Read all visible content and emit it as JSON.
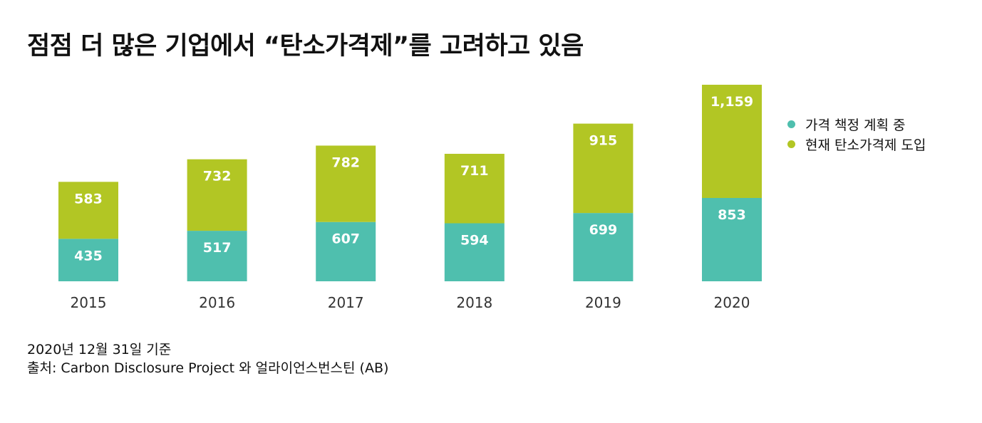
{
  "title": "점점 더 많은 기업에서 “탄소가격제”를 고려하고 있음",
  "legend": {
    "items": [
      {
        "label": "가격 책정 계획 중",
        "color": "#4fbfae"
      },
      {
        "label": "현재 탄소가격제 도입",
        "color": "#b2c624"
      }
    ]
  },
  "footnote": {
    "line1": "2020년 12월 31일 기준",
    "line2": "출처: Carbon Disclosure Project 와 얼라이언스번스틴 (AB)"
  },
  "chart_data": {
    "type": "bar",
    "stacked": true,
    "categories": [
      "2015",
      "2016",
      "2017",
      "2018",
      "2019",
      "2020"
    ],
    "series": [
      {
        "name": "가격 책정 계획 중",
        "color": "#4fbfae",
        "values": [
          435,
          517,
          607,
          594,
          699,
          853
        ],
        "value_labels": [
          "435",
          "517",
          "607",
          "594",
          "699",
          "853"
        ]
      },
      {
        "name": "현재 탄소가격제 도입",
        "color": "#b2c624",
        "values": [
          583,
          732,
          782,
          711,
          915,
          1159
        ],
        "value_labels": [
          "583",
          "732",
          "782",
          "711",
          "915",
          "1,159"
        ]
      }
    ],
    "legend_position": "right",
    "grid": false,
    "y_axis_visible": false,
    "ylim": [
      0,
      2012
    ]
  }
}
